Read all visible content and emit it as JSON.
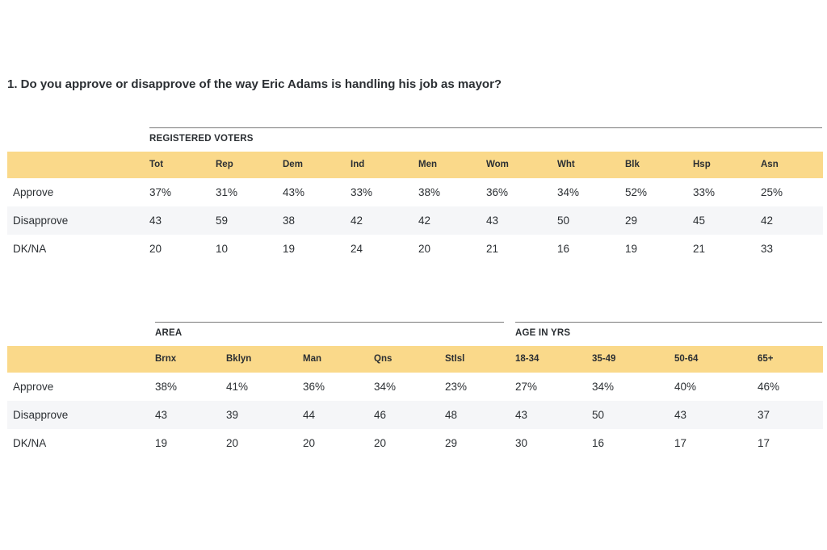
{
  "question": "1. Do you approve or disapprove of the way Eric Adams is handling his job as mayor?",
  "table1": {
    "group": "REGISTERED VOTERS",
    "columns": [
      "Tot",
      "Rep",
      "Dem",
      "Ind",
      "Men",
      "Wom",
      "Wht",
      "Blk",
      "Hsp",
      "Asn"
    ],
    "rows": [
      {
        "label": "Approve",
        "values": [
          "37%",
          "31%",
          "43%",
          "33%",
          "38%",
          "36%",
          "34%",
          "52%",
          "33%",
          "25%"
        ]
      },
      {
        "label": "Disapprove",
        "values": [
          "43",
          "59",
          "38",
          "42",
          "42",
          "43",
          "50",
          "29",
          "45",
          "42"
        ]
      },
      {
        "label": "DK/NA",
        "values": [
          "20",
          "10",
          "19",
          "24",
          "20",
          "21",
          "16",
          "19",
          "21",
          "33"
        ]
      }
    ]
  },
  "table2": {
    "group_area": "AREA",
    "group_age": "AGE IN YRS",
    "columns": [
      "Brnx",
      "Bklyn",
      "Man",
      "Qns",
      "StIsl",
      "18-34",
      "35-49",
      "50-64",
      "65+"
    ],
    "rows": [
      {
        "label": "Approve",
        "values": [
          "38%",
          "41%",
          "36%",
          "34%",
          "23%",
          "27%",
          "34%",
          "40%",
          "46%"
        ]
      },
      {
        "label": "Disapprove",
        "values": [
          "43",
          "39",
          "44",
          "46",
          "48",
          "43",
          "50",
          "43",
          "37"
        ]
      },
      {
        "label": "DK/NA",
        "values": [
          "19",
          "20",
          "20",
          "20",
          "29",
          "30",
          "16",
          "17",
          "17"
        ]
      }
    ]
  }
}
